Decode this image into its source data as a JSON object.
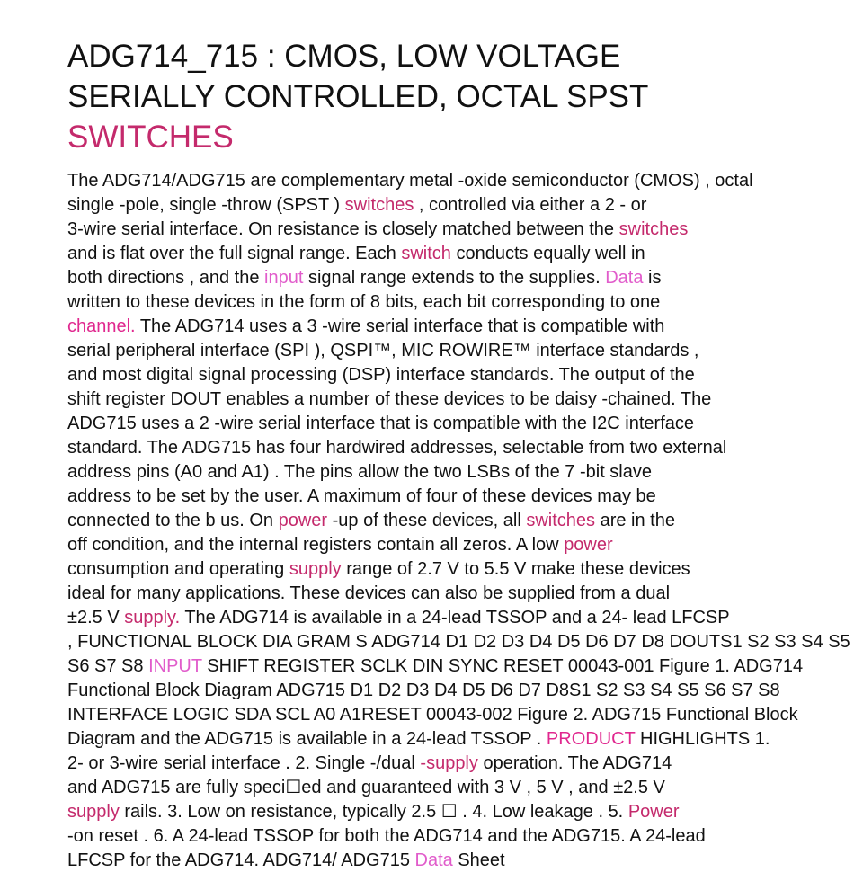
{
  "colors": {
    "text": "#111111",
    "accent_crimson": "#c42a6c",
    "accent_orchid": "#e15ccb",
    "accent_magenta": "#e0288f"
  },
  "document": {
    "title_lines": [
      "ADG714_715 : CMOS, LOW VOLTAGE",
      "SERIALLY CONTROLLED, OCTAL SPST"
    ],
    "title_accent": "SWITCHES",
    "body_lines": [
      [
        {
          "t": "The ADG714/ADG715 are complementary metal -oxide semiconductor (CMOS) , octal",
          "c": ""
        }
      ],
      [
        {
          "t": "single -pole, single -throw (SPST ) ",
          "c": ""
        },
        {
          "t": "switches",
          "c": "a"
        },
        {
          "t": " , controlled via either a 2 - or",
          "c": ""
        }
      ],
      [
        {
          "t": "3-wire serial interface. On resistance is closely matched between the ",
          "c": ""
        },
        {
          "t": "switches",
          "c": "a"
        }
      ],
      [
        {
          "t": "and is flat over the full signal range. Each ",
          "c": ""
        },
        {
          "t": "switch",
          "c": "a"
        },
        {
          "t": " conducts equally well in",
          "c": ""
        }
      ],
      [
        {
          "t": "both directions , and the ",
          "c": ""
        },
        {
          "t": "input",
          "c": "b"
        },
        {
          "t": " signal range extends to the supplies. ",
          "c": ""
        },
        {
          "t": "Data",
          "c": "b"
        },
        {
          "t": " is",
          "c": ""
        }
      ],
      [
        {
          "t": "written to these devices in the form of 8 bits, each bit corresponding to one",
          "c": ""
        }
      ],
      [
        {
          "t": "channel.",
          "c": "c"
        },
        {
          "t": " The ADG714 uses a 3 -wire serial interface that is compatible with",
          "c": ""
        }
      ],
      [
        {
          "t": "serial peripheral interface (SPI ), QSPI™,      MIC ROWIRE™      interface standards ,",
          "c": ""
        }
      ],
      [
        {
          "t": "and most digital signal processing (DSP) interface standards. The output of the",
          "c": ""
        }
      ],
      [
        {
          "t": "shift register DOUT enables a number of these devices to be daisy -chained. The",
          "c": ""
        }
      ],
      [
        {
          "t": "ADG715 uses a 2 -wire serial interface that is compatible with the I2C interface",
          "c": ""
        }
      ],
      [
        {
          "t": "standard. The ADG715 has four hardwired addresses, selectable from two external",
          "c": ""
        }
      ],
      [
        {
          "t": "address pins (A0 and A1) . The pins allow the two LSBs of the 7 -bit slave",
          "c": ""
        }
      ],
      [
        {
          "t": "address to be set by the user. A maximum of four of these devices may be",
          "c": ""
        }
      ],
      [
        {
          "t": "connected to the b us. On ",
          "c": ""
        },
        {
          "t": "power",
          "c": "a"
        },
        {
          "t": " -up of these devices, all ",
          "c": ""
        },
        {
          "t": "switches",
          "c": "a"
        },
        {
          "t": " are in the",
          "c": ""
        }
      ],
      [
        {
          "t": "off condition, and the internal registers contain all zeros. A low ",
          "c": ""
        },
        {
          "t": "power",
          "c": "a"
        }
      ],
      [
        {
          "t": "consumption and operating ",
          "c": ""
        },
        {
          "t": "supply",
          "c": "a"
        },
        {
          "t": " range of 2.7 V to 5.5 V make these devices",
          "c": ""
        }
      ],
      [
        {
          "t": "ideal for many applications. These devices can also be supplied from a dual",
          "c": ""
        }
      ],
      [
        {
          "t": "±2.5     V ",
          "c": ""
        },
        {
          "t": "supply.",
          "c": "a"
        },
        {
          "t": " The ADG714 is available in a 24-lead TSSOP and a 24- lead LFCSP",
          "c": ""
        }
      ],
      [
        {
          "t": ", FUNCTIONAL BLOCK DIA GRAM S ADG714 D1 D2 D3 D4 D5 D6 D7 D8 DOUTS1 S2 S3 S4 S5",
          "c": ""
        }
      ],
      [
        {
          "t": "S6 S7 S8 ",
          "c": ""
        },
        {
          "t": "INPUT",
          "c": "b"
        },
        {
          "t": " SHIFT REGISTER SCLK DIN SYNC RESET 00043-001 Figure 1. ADG714",
          "c": ""
        }
      ],
      [
        {
          "t": "Functional Block Diagram ADG715 D1 D2 D3 D4 D5 D6 D7 D8S1 S2 S3 S4 S5 S6 S7 S8",
          "c": ""
        }
      ],
      [
        {
          "t": "INTERFACE LOGIC SDA SCL A0 A1RESET 00043-002 Figure 2. ADG715 Functional Block",
          "c": ""
        }
      ],
      [
        {
          "t": "Diagram and the ADG715 is available in a 24-lead TSSOP . ",
          "c": ""
        },
        {
          "t": "PRODUCT",
          "c": "c"
        },
        {
          "t": " HIGHLIGHTS 1.",
          "c": ""
        }
      ],
      [
        {
          "t": "2- or 3-wire serial interface . 2. Single -/dual ",
          "c": ""
        },
        {
          "t": "-supply",
          "c": "a"
        },
        {
          "t": " operation. The ADG714",
          "c": ""
        }
      ],
      [
        {
          "t": "and ADG715 are fully speci☐ed       and guaranteed with 3 V , 5 V , and ±2.5     V",
          "c": ""
        }
      ],
      [
        {
          "t": "supply",
          "c": "a"
        },
        {
          "t": " rails. 3. Low on resistance, typically 2.5 ☐    . 4. Low leakage . 5. ",
          "c": ""
        },
        {
          "t": "Power",
          "c": "a"
        }
      ],
      [
        {
          "t": "-on reset . 6. A 24-lead TSSOP for both the ADG714 and the ADG715. A 24-lead",
          "c": ""
        }
      ],
      [
        {
          "t": "LFCSP for the ADG714. ADG714/ ADG715 ",
          "c": ""
        },
        {
          "t": "Data",
          "c": "b"
        },
        {
          "t": " Sheet",
          "c": ""
        }
      ]
    ]
  }
}
